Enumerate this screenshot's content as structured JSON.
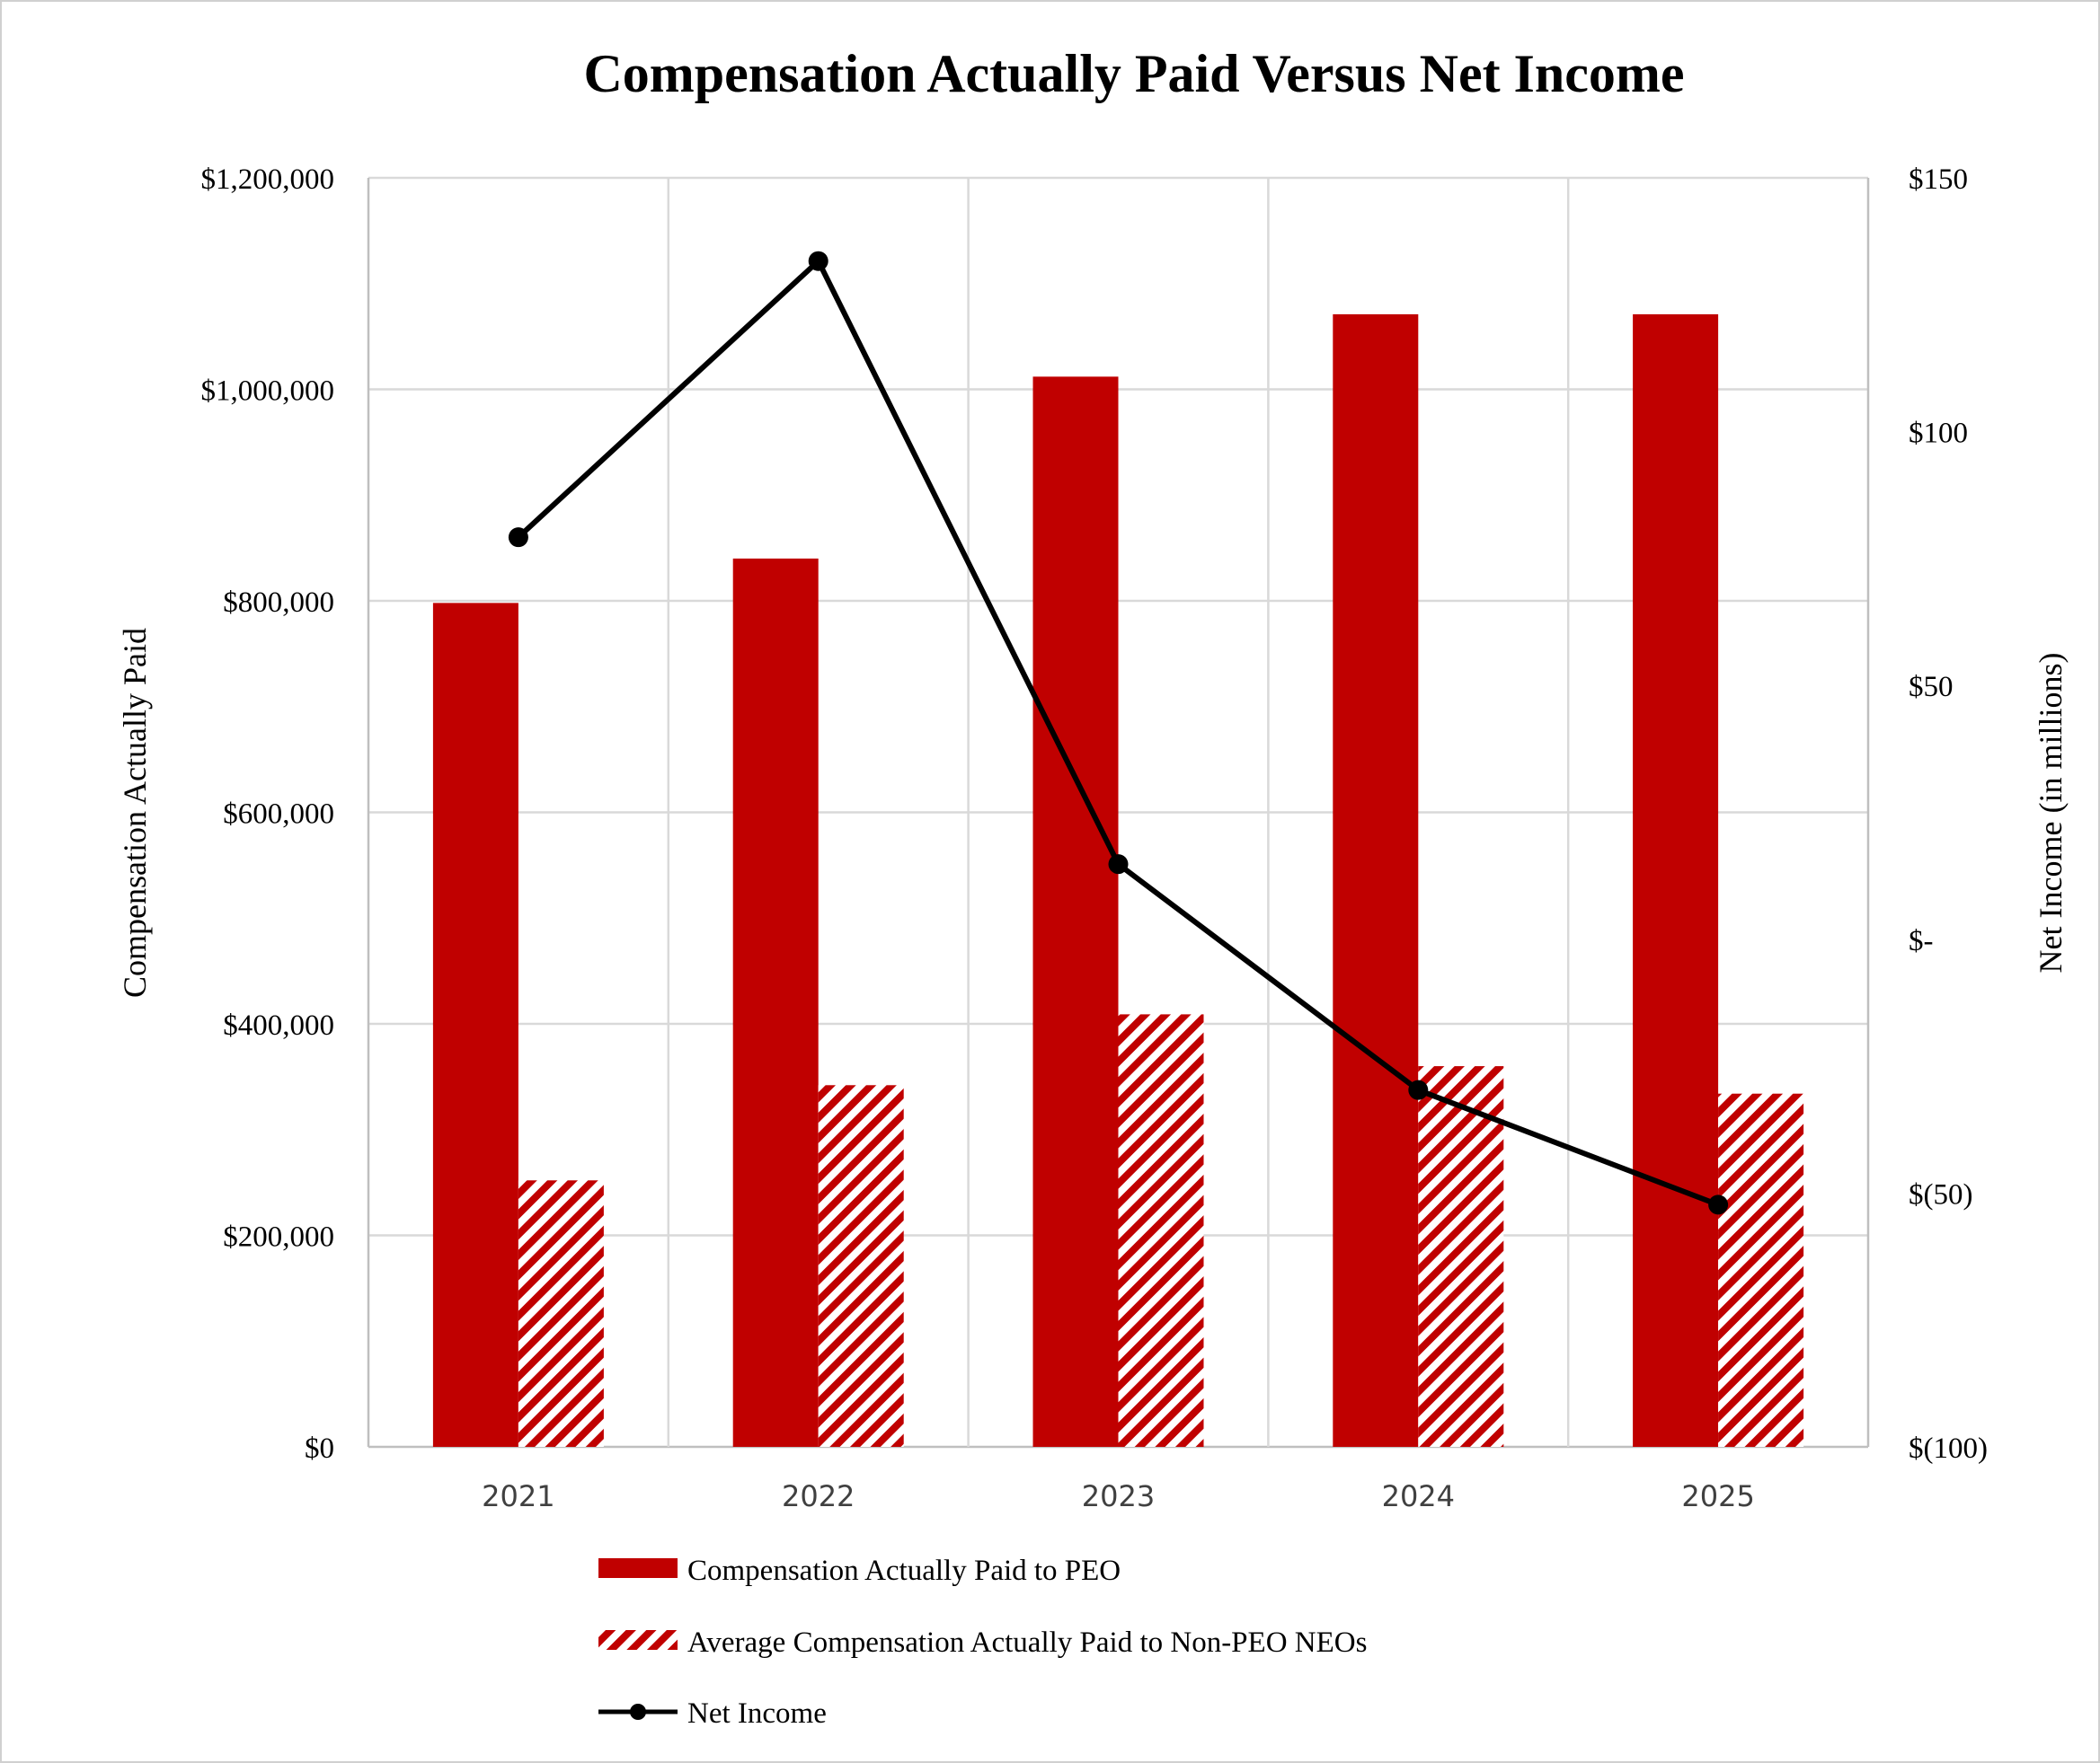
{
  "chart_data": {
    "type": "bar+line",
    "title": "Compensation Actually Paid Versus Net Income",
    "categories": [
      "2021",
      "2022",
      "2023",
      "2024",
      "2025"
    ],
    "ylabel_left": "Compensation Actually Paid",
    "ylabel_right": "Net Income (in millions)",
    "ylim_left": [
      0,
      1200000
    ],
    "ylim_right": [
      -100,
      150
    ],
    "yticks_left": [
      "$0",
      "$200,000",
      "$400,000",
      "$600,000",
      "$800,000",
      "$1,000,000",
      "$1,200,000"
    ],
    "yticks_right": [
      "$(100)",
      "$(50)",
      "$-",
      "$50",
      "$100",
      "$150"
    ],
    "grid": true,
    "legend_position": "bottom",
    "series": [
      {
        "name": "Compensation Actually Paid to PEO",
        "type": "bar",
        "axis": "left",
        "color": "#c00000",
        "fill": "solid",
        "values": [
          798000,
          840000,
          1012000,
          1071000,
          1071000
        ]
      },
      {
        "name": "Average Compensation Actually Paid to Non-PEO NEOs",
        "type": "bar",
        "axis": "left",
        "color": "#c00000",
        "fill": "diagonal-hatch",
        "values": [
          252000,
          342000,
          409000,
          360000,
          334000
        ]
      },
      {
        "name": "Net Income",
        "type": "line",
        "axis": "right",
        "color": "#000000",
        "marker": "circle",
        "values": [
          79.2,
          133.6,
          14.8,
          -29.7,
          -52.3
        ]
      }
    ]
  }
}
